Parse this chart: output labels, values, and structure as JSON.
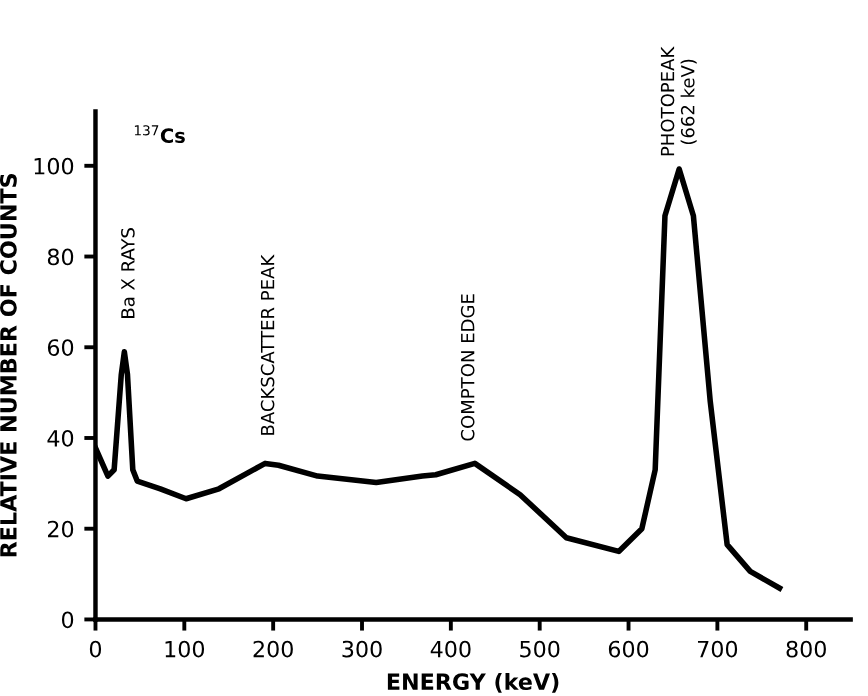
{
  "chart_data": {
    "type": "line",
    "xlabel": "ENERGY (keV)",
    "ylabel": "RELATIVE NUMBER OF COUNTS",
    "x": [
      0,
      14,
      21,
      29,
      32.5,
      36,
      42,
      47,
      73,
      102,
      139,
      191,
      206,
      250,
      316,
      368,
      383,
      427,
      478,
      530,
      589,
      615,
      630,
      641,
      657,
      673,
      692,
      711,
      737,
      770
    ],
    "series": [
      {
        "color": "#000000",
        "values": [
          37.8,
          31.6,
          33,
          53.9,
          59,
          54,
          33,
          30.5,
          28.8,
          26.6,
          28.8,
          34.4,
          34,
          31.6,
          30.2,
          31.6,
          31.9,
          34.4,
          27.5,
          18,
          15,
          20,
          33,
          89,
          99.3,
          89,
          48,
          16.5,
          10.6,
          6.9
        ]
      }
    ],
    "xlim": [
      0,
      850
    ],
    "ylim": [
      0,
      112
    ],
    "xticks": [
      0,
      100,
      200,
      300,
      400,
      500,
      600,
      700,
      800
    ],
    "yticks": [
      0,
      20,
      40,
      60,
      80,
      100
    ],
    "grid": false,
    "legend": false,
    "marker": "none",
    "line_style": "solid",
    "annotations": [
      "$^{137}$Cs",
      "Ba X RAYS",
      "BACKSCATTER PEAK",
      "COMPTON EDGE",
      "PHOTOPEAK\n(662 keV)"
    ]
  }
}
